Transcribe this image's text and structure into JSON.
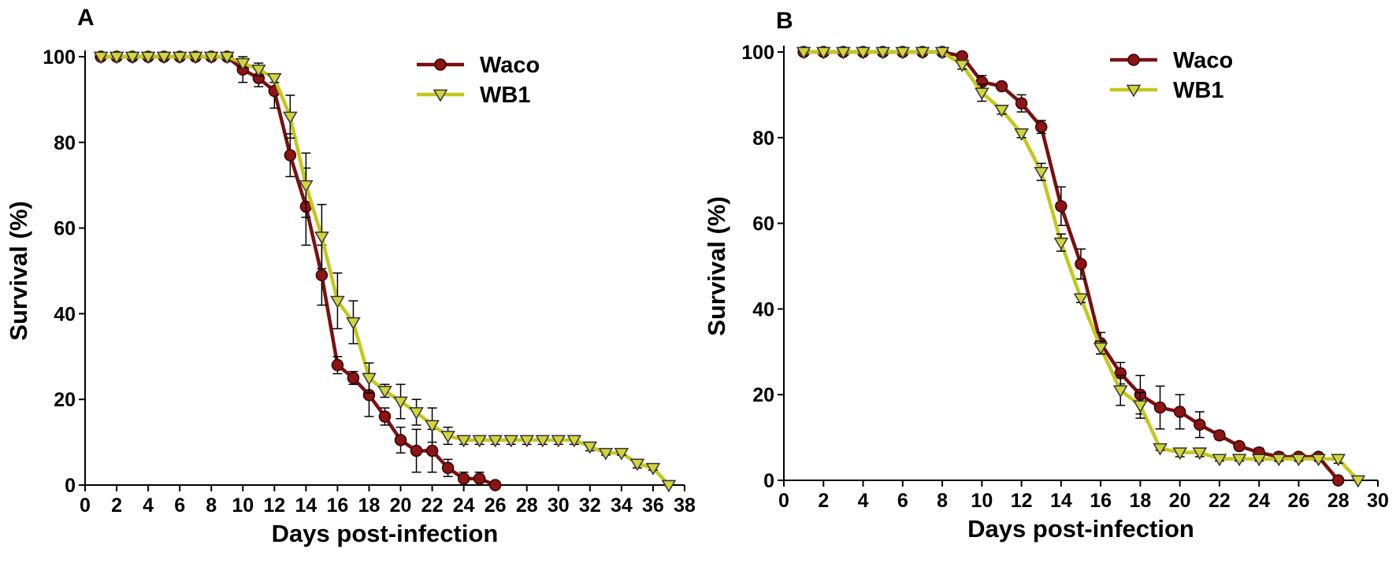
{
  "chart_data": [
    {
      "type": "line",
      "panel": "A",
      "xlabel": "Days post-infection",
      "ylabel": "Survival (%)",
      "xlim": [
        0,
        38
      ],
      "xticks": [
        0,
        2,
        4,
        6,
        8,
        10,
        12,
        14,
        16,
        18,
        20,
        22,
        24,
        26,
        28,
        30,
        32,
        34,
        36,
        38
      ],
      "ylim": [
        0,
        100
      ],
      "yticks": [
        0,
        20,
        40,
        60,
        80,
        100
      ],
      "legend": "upper right",
      "series": [
        {
          "name": "Waco",
          "color": "#8b1414",
          "line_color": "#7a1010",
          "marker": "circle",
          "x": [
            1,
            2,
            3,
            4,
            5,
            6,
            7,
            8,
            9,
            10,
            11,
            12,
            13,
            14,
            15,
            16,
            17,
            18,
            19,
            20,
            21,
            22,
            23,
            24,
            25,
            26
          ],
          "values": [
            100,
            100,
            100,
            100,
            100,
            100,
            100,
            100,
            100,
            97,
            95,
            92,
            77,
            65,
            49,
            28,
            25,
            21,
            16,
            10.5,
            8,
            8,
            4,
            1.5,
            1.5,
            0
          ],
          "errors": [
            0,
            0,
            0,
            0,
            0,
            0,
            0,
            0,
            0,
            3,
            2,
            4,
            5,
            9,
            7,
            2,
            1.5,
            5,
            2,
            3,
            5,
            5,
            2,
            1.5,
            1.5,
            0
          ]
        },
        {
          "name": "WB1",
          "color": "#d2d43a",
          "line_color": "#c4c81c",
          "marker": "triangle",
          "x": [
            1,
            2,
            3,
            4,
            5,
            6,
            7,
            8,
            9,
            10,
            11,
            12,
            13,
            14,
            15,
            16,
            17,
            18,
            19,
            20,
            21,
            22,
            23,
            24,
            25,
            26,
            27,
            28,
            29,
            30,
            31,
            32,
            33,
            34,
            35,
            36,
            37
          ],
          "values": [
            100,
            100,
            100,
            100,
            100,
            100,
            100,
            100,
            100,
            98.5,
            97,
            95,
            86,
            70,
            58,
            43,
            38,
            25,
            22,
            19.5,
            17,
            14,
            11.5,
            10.5,
            10.5,
            10.5,
            10.5,
            10.5,
            10.5,
            10.5,
            10.5,
            9,
            7.5,
            7.5,
            5,
            4,
            0
          ],
          "errors": [
            0,
            0,
            0,
            0,
            0,
            0,
            0,
            0,
            0,
            1,
            1.5,
            1,
            5,
            7.5,
            7.5,
            6.5,
            5,
            3.5,
            1.5,
            4,
            3,
            4,
            2,
            1,
            1,
            1,
            1,
            1,
            1,
            1,
            1,
            1,
            0.5,
            0.5,
            1,
            0.5,
            0
          ]
        }
      ]
    },
    {
      "type": "line",
      "panel": "B",
      "xlabel": "Days post-infection",
      "ylabel": "Survival (%)",
      "xlim": [
        0,
        30
      ],
      "xticks": [
        0,
        2,
        4,
        6,
        8,
        10,
        12,
        14,
        16,
        18,
        20,
        22,
        24,
        26,
        28,
        30
      ],
      "ylim": [
        0,
        100
      ],
      "yticks": [
        0,
        20,
        40,
        60,
        80,
        100
      ],
      "legend": "upper right",
      "series": [
        {
          "name": "Waco",
          "color": "#8b1414",
          "line_color": "#7a1010",
          "marker": "circle",
          "x": [
            1,
            2,
            3,
            4,
            5,
            6,
            7,
            8,
            9,
            10,
            11,
            12,
            13,
            14,
            15,
            16,
            17,
            18,
            19,
            20,
            21,
            22,
            23,
            24,
            25,
            26,
            27,
            28
          ],
          "values": [
            100,
            100,
            100,
            100,
            100,
            100,
            100,
            100,
            99,
            93,
            92,
            88,
            82.5,
            64,
            50.5,
            32,
            25,
            20,
            17,
            16,
            13,
            10.5,
            8,
            6.5,
            5.5,
            5.5,
            5.5,
            0
          ],
          "errors": [
            0,
            0,
            0,
            0,
            0,
            0,
            0,
            0,
            0,
            1.5,
            0.5,
            2,
            1.5,
            4.5,
            3.5,
            2.5,
            2.5,
            4.5,
            5,
            4,
            3,
            1,
            0.5,
            1,
            1,
            0.5,
            0.5,
            0
          ]
        },
        {
          "name": "WB1",
          "color": "#d2d43a",
          "line_color": "#c4c81c",
          "marker": "triangle",
          "x": [
            1,
            2,
            3,
            4,
            5,
            6,
            7,
            8,
            9,
            10,
            11,
            12,
            13,
            14,
            15,
            16,
            17,
            18,
            19,
            20,
            21,
            22,
            23,
            24,
            25,
            26,
            27,
            28,
            29
          ],
          "values": [
            100,
            100,
            100,
            100,
            100,
            100,
            100,
            100,
            97,
            90.5,
            86.5,
            81,
            72,
            55.5,
            42.5,
            31,
            21,
            17.5,
            7.5,
            6.5,
            6.5,
            5,
            5,
            5,
            5,
            5,
            5,
            5,
            0
          ],
          "errors": [
            0,
            0,
            0,
            0,
            0,
            0,
            0,
            0,
            1,
            2,
            1,
            1,
            2,
            2,
            1,
            1.5,
            3.5,
            3,
            0.5,
            1,
            1,
            0.5,
            0.5,
            0.5,
            0.5,
            0.5,
            0.5,
            1,
            0
          ]
        }
      ]
    }
  ]
}
